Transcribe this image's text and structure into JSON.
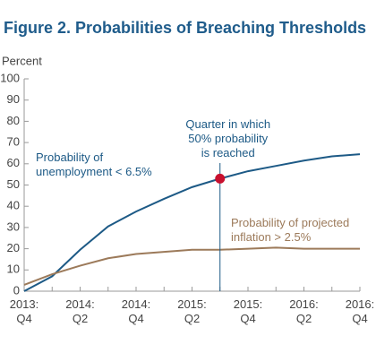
{
  "chart_data": {
    "type": "line",
    "title": "Figure 2. Probabilities of Breaching Thresholds",
    "y_label": "Percent",
    "categories": [
      "2013:\nQ4",
      null,
      "2014:\nQ2",
      null,
      "2014:\nQ4",
      null,
      "2015:\nQ2",
      null,
      "2015:\nQ4",
      null,
      "2016:\nQ2",
      null,
      "2016:\nQ4"
    ],
    "series": [
      {
        "name": "Probability of\nunemployment < 6.5%",
        "color": "#1d5a86",
        "values": [
          0,
          7,
          19.5,
          30.5,
          37.5,
          43.5,
          49,
          53,
          56.5,
          59,
          61.5,
          63.5,
          64.5
        ]
      },
      {
        "name": "Probability of projected\ninflation > 2.5%",
        "color": "#9c7a5a",
        "values": [
          3,
          8,
          12,
          15.5,
          17.5,
          18.5,
          19.5,
          19.5,
          20,
          20.5,
          20,
          20,
          20
        ]
      }
    ],
    "annotation": {
      "text": "Quarter in which\n50% probability\nis reached",
      "series": 0,
      "at": 7,
      "color": "#c8102e"
    },
    "ylim": [
      0,
      100
    ],
    "yticks": [
      0,
      10,
      20,
      30,
      40,
      50,
      60,
      70,
      80,
      90,
      100
    ],
    "grid": false
  }
}
